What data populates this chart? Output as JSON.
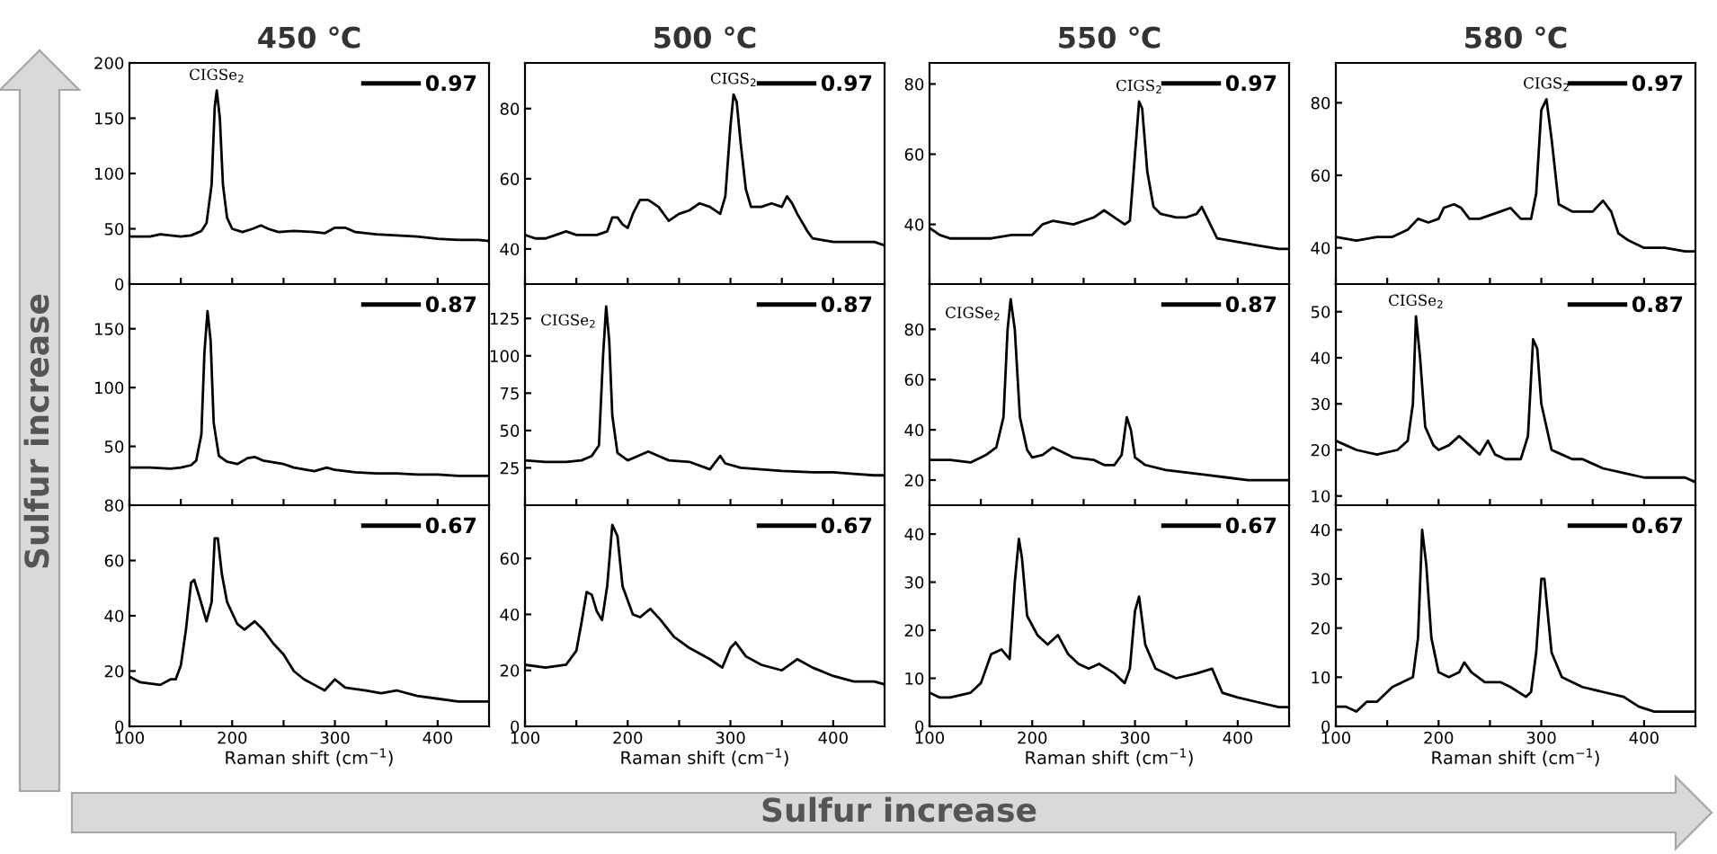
{
  "chart_data": [
    {
      "type": "line",
      "title": "450 ℃",
      "x": [
        100,
        120,
        130,
        140,
        150,
        160,
        170,
        175,
        180,
        183,
        185,
        188,
        191,
        195,
        200,
        210,
        220,
        228,
        235,
        245,
        260,
        280,
        290,
        300,
        310,
        320,
        340,
        360,
        380,
        400,
        420,
        440,
        450
      ],
      "series": [
        {
          "name": "0.97",
          "color": "#000000",
          "values": [
            43,
            43,
            45,
            44,
            43,
            44,
            48,
            55,
            90,
            160,
            175,
            150,
            90,
            60,
            50,
            47,
            50,
            53,
            50,
            47,
            48,
            47,
            46,
            51,
            51,
            47,
            45,
            44,
            43,
            41,
            40,
            40,
            39
          ]
        }
      ],
      "xlim": [
        100,
        450
      ],
      "xticks": [
        100,
        {
          "value": 150,
          "label": null
        },
        200,
        {
          "value": 250,
          "label": null
        },
        300,
        {
          "value": 350,
          "label": null
        },
        400
      ],
      "ylim": [
        0,
        200
      ],
      "yticks": [
        0,
        50,
        100,
        150,
        200
      ],
      "tick_labels": "y",
      "legend": "top right",
      "grid": false,
      "annotations": [
        {
          "text": "CIGSe$_{2}$",
          "x": 185,
          "y": 175
        },
        "Sulfur increase"
      ]
    },
    {
      "type": "line",
      "title": "500 ℃",
      "x": [
        100,
        110,
        120,
        130,
        140,
        150,
        160,
        170,
        180,
        185,
        190,
        195,
        200,
        205,
        212,
        220,
        230,
        240,
        250,
        260,
        270,
        280,
        290,
        295,
        300,
        303,
        306,
        310,
        315,
        320,
        330,
        340,
        350,
        355,
        360,
        365,
        375,
        380,
        400,
        420,
        440,
        450
      ],
      "series": [
        {
          "name": "0.97",
          "color": "#000000",
          "values": [
            44,
            43,
            43,
            44,
            45,
            44,
            44,
            44,
            45,
            49,
            49,
            47,
            46,
            50,
            54,
            54,
            52,
            48,
            50,
            51,
            53,
            52,
            50,
            55,
            75,
            84,
            82,
            70,
            57,
            52,
            52,
            53,
            52,
            55,
            53,
            50,
            45,
            43,
            42,
            42,
            42,
            41
          ]
        }
      ],
      "xlim": [
        100,
        450
      ],
      "xticks": [
        100,
        {
          "value": 150,
          "label": null
        },
        200,
        {
          "value": 250,
          "label": null
        },
        300,
        {
          "value": 350,
          "label": null
        },
        400
      ],
      "ylim": [
        30,
        93
      ],
      "yticks": [
        40,
        60,
        80
      ],
      "tick_labels": "y",
      "legend": "top right",
      "grid": false,
      "annotations": [
        {
          "text": "CIGS$_{2}$",
          "x": 303,
          "y": 84
        }
      ]
    },
    {
      "type": "line",
      "title": "550 ℃",
      "x": [
        100,
        110,
        120,
        140,
        160,
        180,
        200,
        210,
        220,
        240,
        250,
        260,
        270,
        280,
        290,
        295,
        300,
        304,
        307,
        312,
        318,
        325,
        340,
        350,
        360,
        365,
        370,
        380,
        400,
        420,
        440,
        450
      ],
      "series": [
        {
          "name": "0.97",
          "color": "#000000",
          "values": [
            39,
            37,
            36,
            36,
            36,
            37,
            37,
            40,
            41,
            40,
            41,
            42,
            44,
            42,
            40,
            41,
            60,
            75,
            73,
            55,
            45,
            43,
            42,
            42,
            43,
            45,
            42,
            36,
            35,
            34,
            33,
            33
          ]
        }
      ],
      "xlim": [
        100,
        450
      ],
      "xticks": [
        100,
        {
          "value": 150,
          "label": null
        },
        200,
        {
          "value": 250,
          "label": null
        },
        300,
        {
          "value": 350,
          "label": null
        },
        400
      ],
      "ylim": [
        23,
        86
      ],
      "yticks": [
        40,
        60,
        80
      ],
      "tick_labels": "y",
      "legend": "top right",
      "grid": false,
      "annotations": [
        {
          "text": "CIGS$_{2}$",
          "x": 304,
          "y": 75
        }
      ]
    },
    {
      "type": "line",
      "title": "580 ℃",
      "x": [
        100,
        120,
        140,
        155,
        170,
        180,
        190,
        200,
        205,
        215,
        222,
        230,
        240,
        250,
        260,
        270,
        280,
        290,
        295,
        300,
        305,
        310,
        317,
        330,
        340,
        350,
        360,
        368,
        375,
        385,
        400,
        420,
        440,
        450
      ],
      "series": [
        {
          "name": "0.97",
          "color": "#000000",
          "values": [
            43,
            42,
            43,
            43,
            45,
            48,
            47,
            48,
            51,
            52,
            51,
            48,
            48,
            49,
            50,
            51,
            48,
            48,
            55,
            78,
            81,
            70,
            52,
            50,
            50,
            50,
            53,
            50,
            44,
            42,
            40,
            40,
            39,
            39
          ]
        }
      ],
      "xlim": [
        100,
        450
      ],
      "xticks": [
        100,
        {
          "value": 150,
          "label": null
        },
        200,
        {
          "value": 250,
          "label": null
        },
        300,
        {
          "value": 350,
          "label": null
        },
        400
      ],
      "ylim": [
        30,
        91
      ],
      "yticks": [
        40,
        60,
        80
      ],
      "tick_labels": "y",
      "legend": "top right",
      "grid": false,
      "annotations": [
        {
          "text": "CIGS$_{2}$",
          "x": 305,
          "y": 81
        }
      ]
    },
    {
      "type": "line",
      "x": [
        100,
        120,
        140,
        150,
        160,
        165,
        170,
        173,
        176,
        179,
        182,
        187,
        195,
        205,
        215,
        222,
        230,
        250,
        260,
        280,
        292,
        300,
        320,
        340,
        360,
        380,
        400,
        420,
        440,
        450
      ],
      "series": [
        {
          "name": "0.87",
          "color": "#000000",
          "values": [
            32,
            32,
            31,
            32,
            34,
            38,
            60,
            130,
            165,
            140,
            70,
            42,
            37,
            35,
            40,
            41,
            38,
            35,
            32,
            29,
            32,
            30,
            28,
            27,
            27,
            26,
            26,
            25,
            25,
            25
          ]
        }
      ],
      "xlim": [
        100,
        450
      ],
      "xticks": [
        100,
        {
          "value": 150,
          "label": null
        },
        200,
        {
          "value": 250,
          "label": null
        },
        300,
        {
          "value": 350,
          "label": null
        },
        400
      ],
      "ylim": [
        0,
        188
      ],
      "yticks": [
        50,
        100,
        150
      ],
      "tick_labels": "y",
      "legend": "top right",
      "grid": false
    },
    {
      "type": "line",
      "x": [
        100,
        120,
        140,
        155,
        165,
        172,
        176,
        179,
        182,
        185,
        190,
        200,
        210,
        220,
        230,
        240,
        260,
        280,
        290,
        295,
        310,
        330,
        350,
        380,
        400,
        420,
        440,
        450
      ],
      "series": [
        {
          "name": "0.87",
          "color": "#000000",
          "values": [
            30,
            29,
            29,
            30,
            33,
            40,
            100,
            133,
            110,
            60,
            35,
            30,
            33,
            36,
            33,
            30,
            29,
            24,
            33,
            28,
            25,
            24,
            23,
            22,
            22,
            21,
            20,
            20
          ]
        }
      ],
      "xlim": [
        100,
        450
      ],
      "xticks": [
        100,
        {
          "value": 150,
          "label": null
        },
        200,
        {
          "value": 250,
          "label": null
        },
        300,
        {
          "value": 350,
          "label": null
        },
        400
      ],
      "ylim": [
        0,
        148
      ],
      "yticks": [
        25,
        50,
        75,
        100,
        125
      ],
      "tick_labels": "y",
      "legend": "top right",
      "grid": false,
      "annotations": [
        {
          "text": "CIGSe$_{2}$",
          "x": 179,
          "y": 133
        }
      ]
    },
    {
      "type": "line",
      "x": [
        100,
        120,
        140,
        155,
        165,
        172,
        176,
        179,
        183,
        188,
        195,
        200,
        210,
        220,
        230,
        240,
        260,
        270,
        280,
        287,
        292,
        296,
        300,
        310,
        330,
        350,
        370,
        390,
        410,
        430,
        450
      ],
      "series": [
        {
          "name": "0.87",
          "color": "#000000",
          "values": [
            28,
            28,
            27,
            30,
            33,
            45,
            80,
            92,
            80,
            45,
            32,
            29,
            30,
            33,
            31,
            29,
            28,
            26,
            26,
            30,
            45,
            40,
            29,
            26,
            24,
            23,
            22,
            21,
            20,
            20,
            20
          ]
        }
      ],
      "xlim": [
        100,
        450
      ],
      "xticks": [
        100,
        {
          "value": 150,
          "label": null
        },
        200,
        {
          "value": 250,
          "label": null
        },
        300,
        {
          "value": 350,
          "label": null
        },
        400
      ],
      "ylim": [
        10,
        98
      ],
      "yticks": [
        20,
        40,
        60,
        80
      ],
      "tick_labels": "y",
      "legend": "top right",
      "grid": false,
      "annotations": [
        {
          "text": "CIGSe$_{2}$",
          "x": 179,
          "y": 92
        }
      ]
    },
    {
      "type": "line",
      "x": [
        100,
        110,
        120,
        140,
        160,
        170,
        175,
        178,
        182,
        187,
        195,
        200,
        210,
        220,
        230,
        240,
        248,
        255,
        265,
        280,
        287,
        292,
        296,
        300,
        310,
        320,
        330,
        340,
        350,
        360,
        380,
        400,
        420,
        440,
        450
      ],
      "series": [
        {
          "name": "0.87",
          "color": "#000000",
          "values": [
            22,
            21,
            20,
            19,
            20,
            22,
            30,
            49,
            40,
            25,
            21,
            20,
            21,
            23,
            21,
            19,
            22,
            19,
            18,
            18,
            23,
            44,
            42,
            30,
            20,
            19,
            18,
            18,
            17,
            16,
            15,
            14,
            14,
            14,
            13
          ]
        }
      ],
      "xlim": [
        100,
        450
      ],
      "xticks": [
        100,
        {
          "value": 150,
          "label": null
        },
        200,
        {
          "value": 250,
          "label": null
        },
        300,
        {
          "value": 350,
          "label": null
        },
        400
      ],
      "ylim": [
        8,
        56
      ],
      "yticks": [
        10,
        20,
        30,
        40,
        50
      ],
      "tick_labels": "y",
      "legend": "top right",
      "grid": false,
      "annotations": [
        {
          "text": "CIGSe$_{2}$",
          "x": 178,
          "y": 49
        }
      ]
    },
    {
      "type": "line",
      "xlabel": "Raman shift (cm$^{−1}$)",
      "x": [
        100,
        110,
        130,
        140,
        145,
        150,
        155,
        160,
        163,
        168,
        175,
        180,
        183,
        186,
        190,
        195,
        205,
        212,
        222,
        230,
        240,
        250,
        260,
        270,
        280,
        290,
        300,
        310,
        330,
        345,
        360,
        380,
        400,
        420,
        440,
        450
      ],
      "series": [
        {
          "name": "0.67",
          "color": "#000000",
          "values": [
            18,
            16,
            15,
            17,
            17,
            22,
            35,
            52,
            53,
            47,
            38,
            45,
            68,
            68,
            55,
            45,
            37,
            35,
            38,
            35,
            30,
            26,
            20,
            17,
            15,
            13,
            17,
            14,
            13,
            12,
            13,
            11,
            10,
            9,
            9,
            9
          ]
        }
      ],
      "xlim": [
        100,
        450
      ],
      "xticks": [
        100,
        {
          "value": 150,
          "label": null
        },
        200,
        {
          "value": 250,
          "label": null
        },
        300,
        {
          "value": 350,
          "label": null
        },
        400
      ],
      "ylim": [
        0,
        80
      ],
      "yticks": [
        0,
        20,
        40,
        60,
        80
      ],
      "legend": "top right",
      "grid": false,
      "annotations": [
        "Sulfur increase"
      ]
    },
    {
      "type": "line",
      "xlabel": "Raman shift (cm$^{−1}$)",
      "x": [
        100,
        120,
        140,
        150,
        155,
        160,
        165,
        170,
        175,
        180,
        185,
        190,
        195,
        205,
        212,
        222,
        232,
        245,
        260,
        280,
        292,
        300,
        305,
        315,
        330,
        350,
        365,
        380,
        400,
        420,
        440,
        450
      ],
      "series": [
        {
          "name": "0.67",
          "color": "#000000",
          "values": [
            22,
            21,
            22,
            27,
            37,
            48,
            47,
            41,
            38,
            50,
            72,
            68,
            50,
            40,
            39,
            42,
            38,
            32,
            28,
            24,
            21,
            28,
            30,
            25,
            22,
            20,
            24,
            21,
            18,
            16,
            16,
            15
          ]
        }
      ],
      "xlim": [
        100,
        450
      ],
      "xticks": [
        100,
        {
          "value": 150,
          "label": null
        },
        200,
        {
          "value": 250,
          "label": null
        },
        300,
        {
          "value": 350,
          "label": null
        },
        400
      ],
      "ylim": [
        0,
        79
      ],
      "yticks": [
        0,
        20,
        40,
        60
      ],
      "legend": "top right",
      "grid": false
    },
    {
      "type": "line",
      "xlabel": "Raman shift (cm$^{−1}$)",
      "x": [
        100,
        110,
        120,
        140,
        150,
        160,
        170,
        178,
        183,
        187,
        190,
        195,
        205,
        215,
        225,
        235,
        245,
        255,
        265,
        280,
        290,
        295,
        300,
        304,
        310,
        320,
        340,
        360,
        375,
        385,
        400,
        420,
        440,
        450
      ],
      "series": [
        {
          "name": "0.67",
          "color": "#000000",
          "values": [
            7,
            6,
            6,
            7,
            9,
            15,
            16,
            14,
            30,
            39,
            35,
            23,
            19,
            17,
            19,
            15,
            13,
            12,
            13,
            11,
            9,
            12,
            24,
            27,
            17,
            12,
            10,
            11,
            12,
            7,
            6,
            5,
            4,
            4
          ]
        }
      ],
      "xlim": [
        100,
        450
      ],
      "xticks": [
        100,
        {
          "value": 150,
          "label": null
        },
        200,
        {
          "value": 250,
          "label": null
        },
        300,
        {
          "value": 350,
          "label": null
        },
        400
      ],
      "ylim": [
        0,
        46
      ],
      "yticks": [
        0,
        10,
        20,
        30,
        40
      ],
      "legend": "top right",
      "grid": false
    },
    {
      "type": "line",
      "xlabel": "Raman shift (cm$^{−1}$)",
      "x": [
        100,
        110,
        120,
        130,
        140,
        155,
        165,
        175,
        180,
        184,
        188,
        193,
        200,
        210,
        220,
        225,
        232,
        245,
        260,
        270,
        285,
        290,
        295,
        300,
        303,
        310,
        320,
        340,
        360,
        380,
        395,
        410,
        430,
        450
      ],
      "series": [
        {
          "name": "0.67",
          "color": "#000000",
          "values": [
            4,
            4,
            3,
            5,
            5,
            8,
            9,
            10,
            18,
            40,
            33,
            18,
            11,
            10,
            11,
            13,
            11,
            9,
            9,
            8,
            6,
            7,
            15,
            30,
            30,
            15,
            10,
            8,
            7,
            6,
            4,
            3,
            3,
            3
          ]
        }
      ],
      "xlim": [
        100,
        450
      ],
      "xticks": [
        100,
        {
          "value": 150,
          "label": null
        },
        200,
        {
          "value": 250,
          "label": null
        },
        300,
        {
          "value": 350,
          "label": null
        },
        400
      ],
      "ylim": [
        0,
        45
      ],
      "yticks": [
        0,
        10,
        20,
        30,
        40
      ],
      "legend": "top right",
      "grid": false
    }
  ]
}
